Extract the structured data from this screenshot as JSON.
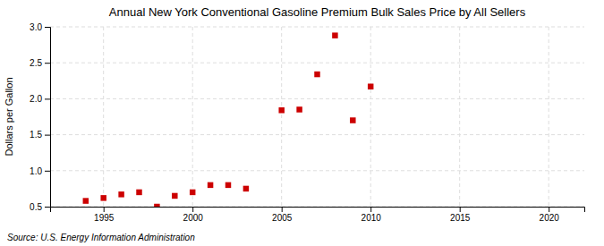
{
  "chart_data": {
    "type": "scatter",
    "title": "Annual New York Conventional Gasoline Premium Bulk Sales Price by All Sellers",
    "ylabel": "Dollars per Gallon",
    "source": "Source: U.S. Energy Information Administration",
    "x": [
      1994,
      1995,
      1996,
      1997,
      1998,
      1999,
      2000,
      2001,
      2002,
      2003,
      2005,
      2006,
      2007,
      2008,
      2009,
      2010
    ],
    "values": [
      0.58,
      0.62,
      0.67,
      0.7,
      0.5,
      0.65,
      0.7,
      0.8,
      0.8,
      0.75,
      1.84,
      1.85,
      2.34,
      2.88,
      1.7,
      2.17
    ],
    "color": "#cc0000",
    "marker": "square",
    "xlim": [
      1992,
      2022
    ],
    "ylim": [
      0.5,
      3.0
    ],
    "xticks": [
      1995,
      2000,
      2005,
      2010,
      2015,
      2020
    ],
    "yticks": [
      0.5,
      {
        "value": 1.0,
        "label": "1.0"
      },
      1.5,
      {
        "value": 2.0,
        "label": "2.0"
      },
      2.5,
      {
        "value": 3.0,
        "label": "3.0"
      }
    ],
    "grid": true
  }
}
